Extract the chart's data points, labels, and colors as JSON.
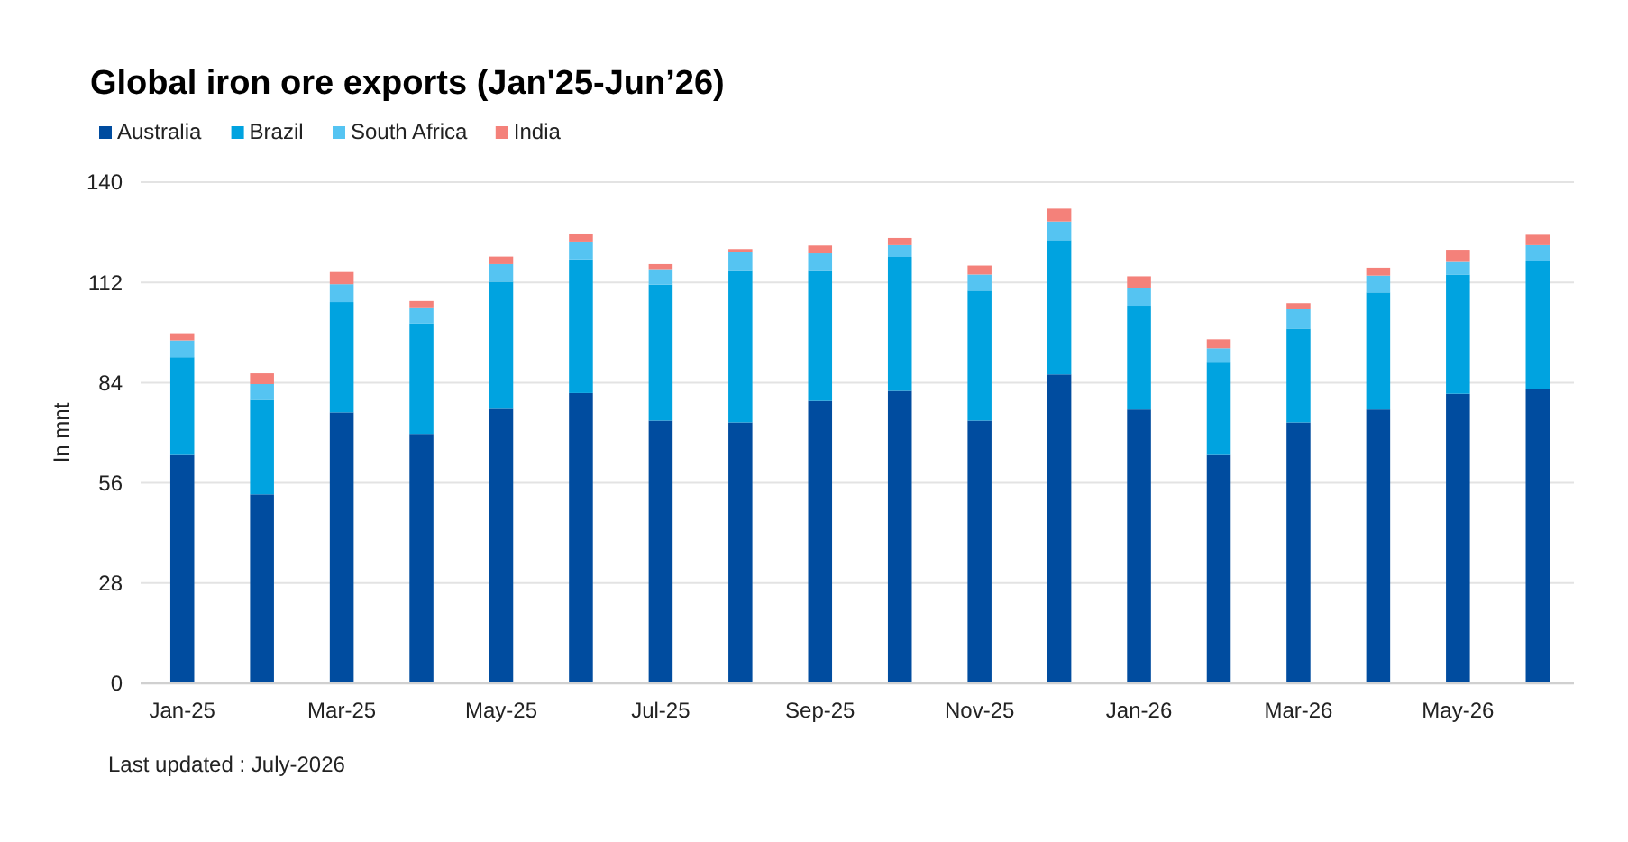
{
  "chart_data": {
    "type": "bar",
    "title": "Global iron ore exports (Jan'25-Jun’26)",
    "ylabel": "In mnt",
    "categories": [
      "Jan-25",
      null,
      "Mar-25",
      null,
      "May-25",
      null,
      "Jul-25",
      null,
      "Sep-25",
      null,
      "Nov-25",
      null,
      "Jan-26",
      null,
      "Mar-26",
      null,
      "May-26",
      null
    ],
    "stacked": true,
    "series": [
      {
        "name": "Australia",
        "color": "#004c9f",
        "values": [
          63.8,
          52.8,
          75.7,
          69.7,
          76.7,
          81.1,
          73.4,
          72.9,
          78.9,
          81.7,
          73.4,
          86.3,
          76.5,
          63.8,
          72.9,
          76.5,
          80.9,
          82.2
        ]
      },
      {
        "name": "Brazil",
        "color": "#00a3e0",
        "values": [
          27.3,
          26.4,
          30.8,
          30.8,
          35.5,
          37.3,
          38.0,
          42.3,
          36.3,
          37.4,
          36.3,
          37.5,
          29.0,
          25.8,
          26.2,
          32.7,
          33.3,
          35.7
        ]
      },
      {
        "name": "South Africa",
        "color": "#55c4f2",
        "values": [
          4.7,
          4.4,
          5.0,
          4.3,
          4.9,
          5.0,
          4.3,
          5.4,
          4.9,
          3.3,
          4.5,
          5.2,
          5.0,
          4.0,
          5.4,
          4.7,
          3.5,
          4.5
        ]
      },
      {
        "name": "India",
        "color": "#f4817a",
        "values": [
          2.0,
          3.0,
          3.4,
          2.0,
          2.1,
          2.0,
          1.4,
          0.7,
          2.2,
          2.0,
          2.5,
          3.6,
          3.2,
          2.5,
          1.7,
          2.2,
          3.4,
          2.9
        ]
      }
    ],
    "ylim": [
      0,
      140
    ],
    "yticks": [
      0,
      28,
      56,
      84,
      112,
      140
    ],
    "grid": "y",
    "legend": "top left",
    "annotations": [
      "Last updated : July-2026"
    ]
  }
}
